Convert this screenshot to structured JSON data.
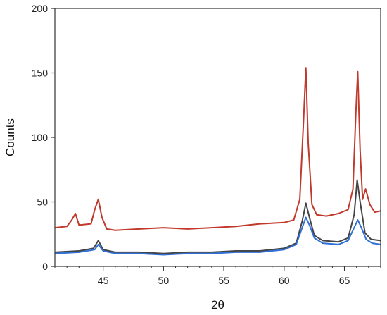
{
  "chart_data": {
    "type": "line",
    "title": "",
    "xlabel": "2θ",
    "ylabel": "Counts",
    "xlim": [
      41,
      68
    ],
    "ylim": [
      0,
      200
    ],
    "xticks": [
      45,
      50,
      55,
      60,
      65
    ],
    "yticks": [
      0,
      50,
      100,
      150,
      200
    ],
    "grid": false,
    "legend": "none",
    "series": [
      {
        "color": "#c0392b",
        "x": [
          41,
          42,
          42.4,
          42.7,
          43,
          44,
          44.3,
          44.6,
          44.9,
          45.3,
          46,
          48,
          50,
          52,
          54,
          56,
          58,
          60,
          60.8,
          61.3,
          61.6,
          61.8,
          62.0,
          62.3,
          62.7,
          63.5,
          64.5,
          65.3,
          65.7,
          65.95,
          66.1,
          66.3,
          66.5,
          66.75,
          67.1,
          67.5,
          68
        ],
        "y": [
          30,
          31,
          36,
          41,
          32,
          33,
          44,
          52,
          38,
          29,
          28,
          29,
          30,
          29,
          30,
          31,
          33,
          34,
          36,
          52,
          112,
          154,
          95,
          48,
          40,
          39,
          41,
          44,
          60,
          120,
          151,
          90,
          52,
          60,
          48,
          42,
          43
        ]
      },
      {
        "color": "#444444",
        "x": [
          41,
          43,
          44.2,
          44.6,
          45.0,
          46,
          48,
          50,
          52,
          54,
          56,
          58,
          60,
          61.0,
          61.5,
          61.8,
          62.1,
          62.5,
          63.2,
          64.5,
          65.3,
          65.8,
          66.05,
          66.3,
          66.7,
          67.2,
          68
        ],
        "y": [
          11,
          12,
          14,
          20,
          13,
          11,
          11,
          10,
          11,
          11,
          12,
          12,
          14,
          18,
          35,
          49,
          38,
          24,
          20,
          19,
          22,
          40,
          67,
          50,
          26,
          21,
          20
        ]
      },
      {
        "color": "#2f6fd6",
        "x": [
          41,
          43,
          44.3,
          44.6,
          45.0,
          46,
          48,
          50,
          52,
          54,
          56,
          58,
          60,
          61.0,
          61.5,
          61.8,
          62.1,
          62.5,
          63.2,
          64.5,
          65.3,
          65.8,
          66.1,
          66.4,
          66.8,
          67.3,
          68
        ],
        "y": [
          10,
          11,
          13,
          17,
          12,
          10,
          10,
          9,
          10,
          10,
          11,
          11,
          13,
          17,
          30,
          38,
          32,
          22,
          18,
          17,
          20,
          30,
          36,
          30,
          21,
          18,
          17
        ]
      }
    ]
  }
}
